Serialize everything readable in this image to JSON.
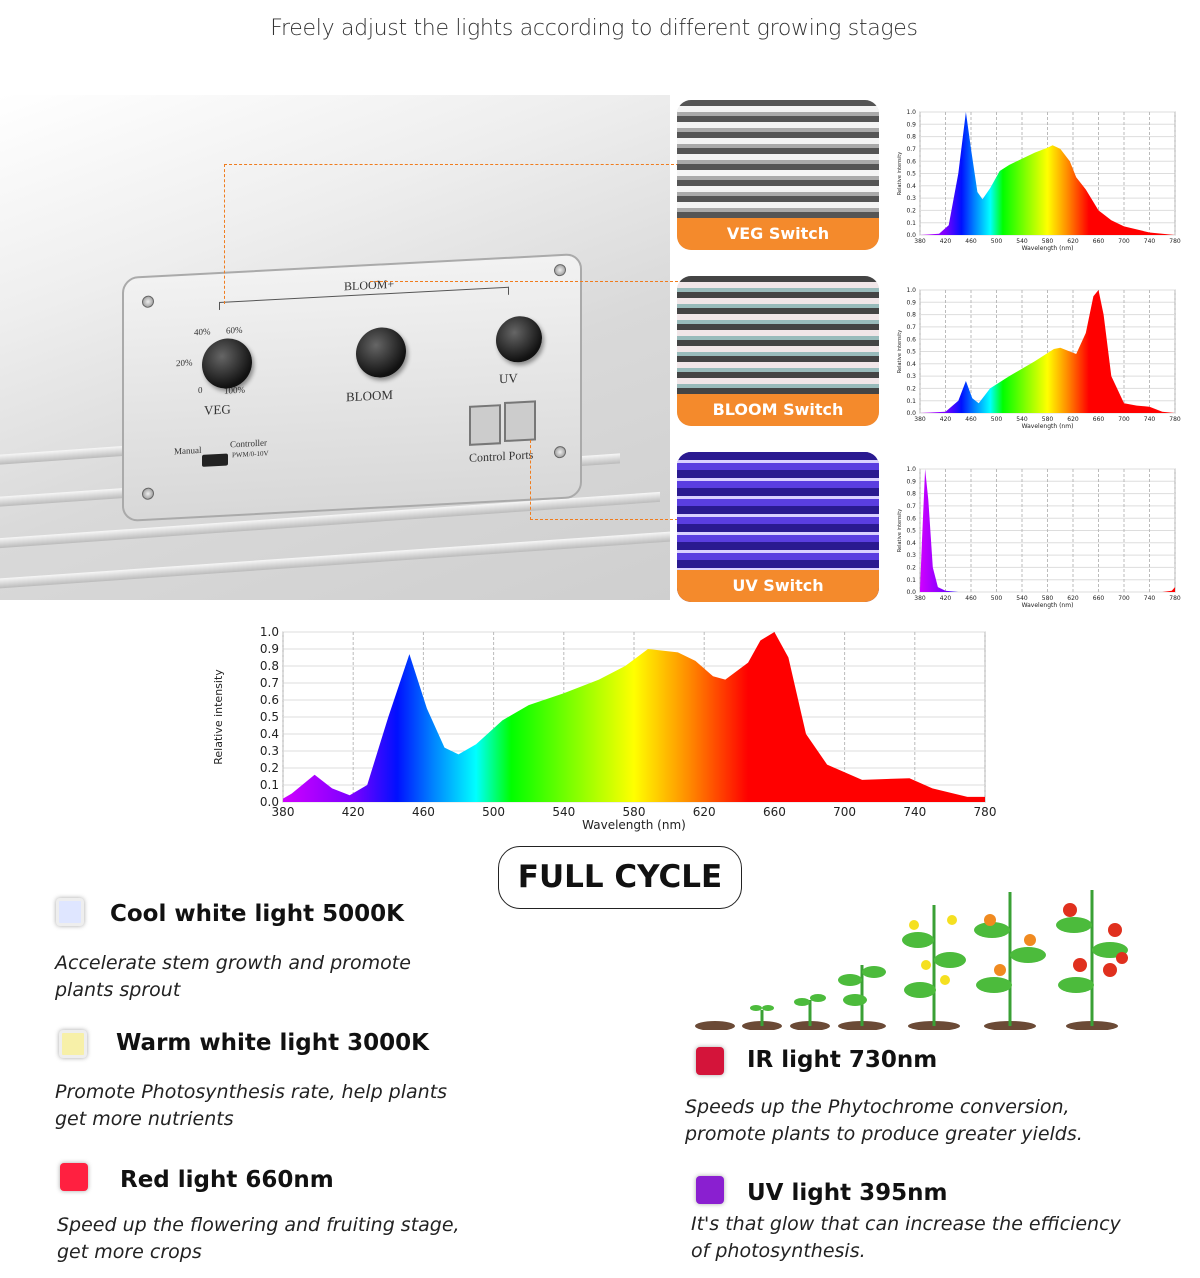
{
  "headline": "Freely adjust the lights according to different growing stages",
  "controller": {
    "bloom_plus": "BLOOM+",
    "veg": "VEG",
    "bloom": "BLOOM",
    "uv": "UV",
    "manual": "Manual",
    "controller": "Controller",
    "pwm": "PWM/0-10V",
    "ports": "Control Ports",
    "pct": [
      "20%",
      "40%",
      "60%",
      "0",
      "100%"
    ]
  },
  "switches": [
    {
      "label": "VEG Switch"
    },
    {
      "label": "BLOOM Switch"
    },
    {
      "label": "UV Switch"
    }
  ],
  "full_cycle": "FULL CYCLE",
  "features": [
    {
      "title": "Cool white light 5000K",
      "desc": [
        "Accelerate stem growth and promote",
        "plants sprout"
      ],
      "color": "#dfe6ff"
    },
    {
      "title": "Warm white light 3000K",
      "desc": [
        "Promote Photosynthesis rate, help plants",
        "get more nutrients"
      ],
      "color": "#f7f0a8"
    },
    {
      "title": "Red light 660nm",
      "desc": [
        "Speed up the flowering and fruiting stage,",
        "get more crops"
      ],
      "color": "#ff2040"
    },
    {
      "title": "IR light 730nm",
      "desc": [
        "Speeds up the Phytochrome conversion,",
        "promote plants to produce greater yields."
      ],
      "color": "#d4143a"
    },
    {
      "title": "UV light 395nm",
      "desc": [
        "It's that glow that can increase the efficiency",
        "of photosynthesis."
      ],
      "color": "#8a1fd0"
    }
  ],
  "chart_data": [
    {
      "type": "area",
      "title": "VEG",
      "xlabel": "Wavelength (nm)",
      "ylabel": "Relative intensity",
      "xlim": [
        380,
        780
      ],
      "ylim": [
        0,
        1
      ],
      "grid": true,
      "x": [
        380,
        410,
        425,
        440,
        452,
        460,
        470,
        478,
        490,
        505,
        520,
        540,
        560,
        580,
        588,
        600,
        615,
        625,
        640,
        660,
        680,
        700,
        740,
        780
      ],
      "y": [
        0,
        0.01,
        0.08,
        0.5,
        1.0,
        0.7,
        0.35,
        0.29,
        0.38,
        0.52,
        0.57,
        0.62,
        0.67,
        0.71,
        0.73,
        0.7,
        0.6,
        0.47,
        0.37,
        0.2,
        0.12,
        0.07,
        0.02,
        0
      ]
    },
    {
      "type": "area",
      "title": "BLOOM",
      "xlabel": "Wavelength (nm)",
      "ylabel": "Relative intensity",
      "xlim": [
        380,
        780
      ],
      "ylim": [
        0,
        1
      ],
      "grid": true,
      "x": [
        380,
        420,
        440,
        452,
        462,
        472,
        490,
        520,
        560,
        590,
        600,
        615,
        625,
        640,
        652,
        660,
        668,
        680,
        700,
        720,
        740,
        760,
        780
      ],
      "y": [
        0,
        0.01,
        0.1,
        0.26,
        0.12,
        0.08,
        0.2,
        0.3,
        0.42,
        0.52,
        0.53,
        0.5,
        0.48,
        0.65,
        0.95,
        1.0,
        0.8,
        0.3,
        0.08,
        0.06,
        0.05,
        0.01,
        0
      ]
    },
    {
      "type": "area",
      "title": "UV",
      "xlabel": "Wavelength (nm)",
      "ylabel": "Relative intensity",
      "xlim": [
        380,
        780
      ],
      "ylim": [
        0,
        1
      ],
      "grid": true,
      "x": [
        380,
        383,
        388,
        393,
        400,
        408,
        420,
        440,
        760,
        775,
        780
      ],
      "y": [
        0.02,
        0.4,
        1.0,
        0.75,
        0.2,
        0.04,
        0.01,
        0,
        0,
        0.01,
        0.04
      ]
    },
    {
      "type": "area",
      "title": "FULL CYCLE",
      "xlabel": "Wavelength (nm)",
      "ylabel": "Relative intensity",
      "xlim": [
        380,
        780
      ],
      "ylim": [
        0,
        1
      ],
      "grid": true,
      "x": [
        380,
        385,
        398,
        408,
        418,
        428,
        440,
        452,
        462,
        472,
        480,
        490,
        505,
        520,
        540,
        560,
        575,
        588,
        605,
        615,
        625,
        632,
        645,
        652,
        660,
        668,
        678,
        690,
        710,
        737,
        750,
        770,
        780
      ],
      "y": [
        0.02,
        0.05,
        0.16,
        0.08,
        0.04,
        0.1,
        0.5,
        0.87,
        0.55,
        0.32,
        0.28,
        0.34,
        0.48,
        0.57,
        0.64,
        0.72,
        0.8,
        0.9,
        0.88,
        0.83,
        0.74,
        0.72,
        0.82,
        0.95,
        1.0,
        0.85,
        0.4,
        0.22,
        0.13,
        0.14,
        0.08,
        0.03,
        0.03
      ]
    }
  ]
}
